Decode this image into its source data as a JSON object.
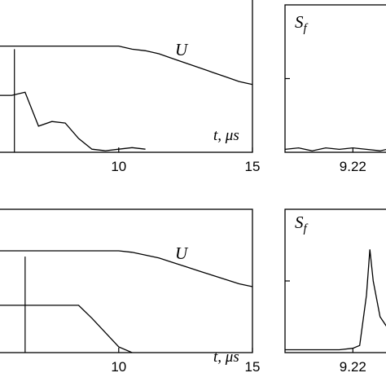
{
  "chart_data": [
    {
      "type": "line",
      "xlabel": "t, μs",
      "xlim": [
        5.5,
        15
      ],
      "xticks": [
        10,
        15
      ],
      "ylim": [
        0,
        1
      ],
      "vline": 6.1,
      "x": [
        5.5,
        6,
        6.5,
        7,
        7.5,
        8,
        8.5,
        9,
        9.5,
        10,
        10.5,
        11,
        11.5,
        12,
        12.5,
        13,
        13.5,
        14,
        14.5,
        15
      ],
      "series": [
        {
          "name": "U",
          "color": "#000000",
          "values": [
            0.69,
            0.69,
            0.69,
            0.69,
            0.69,
            0.69,
            0.69,
            0.69,
            0.69,
            0.69,
            0.67,
            0.66,
            0.64,
            0.61,
            0.58,
            0.55,
            0.52,
            0.49,
            0.46,
            0.44
          ]
        },
        {
          "color": "#000000",
          "values": [
            0.37,
            0.37,
            0.39,
            0.17,
            0.2,
            0.19,
            0.09,
            0.02,
            0.01,
            0.02,
            0.03,
            0.02,
            null,
            null,
            null,
            null,
            null,
            null,
            null,
            null
          ]
        }
      ]
    },
    {
      "type": "line",
      "ylabel": "Sf",
      "xlim": [
        9.12,
        9.3
      ],
      "xticks": [
        9.22
      ],
      "ylim": [
        0,
        1
      ],
      "x": [
        9.12,
        9.14,
        9.16,
        9.18,
        9.2,
        9.22,
        9.24,
        9.26,
        9.28,
        9.3
      ],
      "series": [
        {
          "color": "#000000",
          "values": [
            0.02,
            0.03,
            0.01,
            0.03,
            0.02,
            0.03,
            0.02,
            0.01,
            0.03,
            0.02
          ]
        }
      ]
    },
    {
      "type": "line",
      "xlabel": "t, μs",
      "xlim": [
        5.5,
        15
      ],
      "xticks": [
        10,
        15
      ],
      "ylim": [
        0,
        1
      ],
      "vline": 6.5,
      "x": [
        5.5,
        6,
        6.5,
        7,
        7.5,
        8,
        8.5,
        9,
        9.5,
        10,
        10.5,
        11,
        11.5,
        12,
        12.5,
        13,
        13.5,
        14,
        14.5,
        15
      ],
      "series": [
        {
          "name": "U",
          "color": "#000000",
          "values": [
            0.71,
            0.71,
            0.71,
            0.71,
            0.71,
            0.71,
            0.71,
            0.71,
            0.71,
            0.71,
            0.7,
            0.68,
            0.66,
            0.63,
            0.6,
            0.57,
            0.54,
            0.51,
            0.48,
            0.46
          ]
        },
        {
          "color": "#000000",
          "values": [
            0.33,
            0.33,
            0.33,
            0.33,
            0.33,
            0.33,
            0.33,
            0.24,
            0.14,
            0.04,
            0,
            null,
            null,
            null,
            null,
            null,
            null,
            null,
            null,
            null
          ]
        }
      ]
    },
    {
      "type": "line",
      "ylabel": "Sf",
      "xlim": [
        9.12,
        9.3
      ],
      "xticks": [
        9.22
      ],
      "ylim": [
        0,
        1
      ],
      "x": [
        9.12,
        9.16,
        9.2,
        9.22,
        9.23,
        9.24,
        9.245,
        9.25,
        9.26,
        9.27
      ],
      "series": [
        {
          "color": "#000000",
          "values": [
            0.02,
            0.02,
            0.02,
            0.03,
            0.05,
            0.4,
            0.72,
            0.5,
            0.25,
            0.18
          ]
        }
      ]
    }
  ]
}
